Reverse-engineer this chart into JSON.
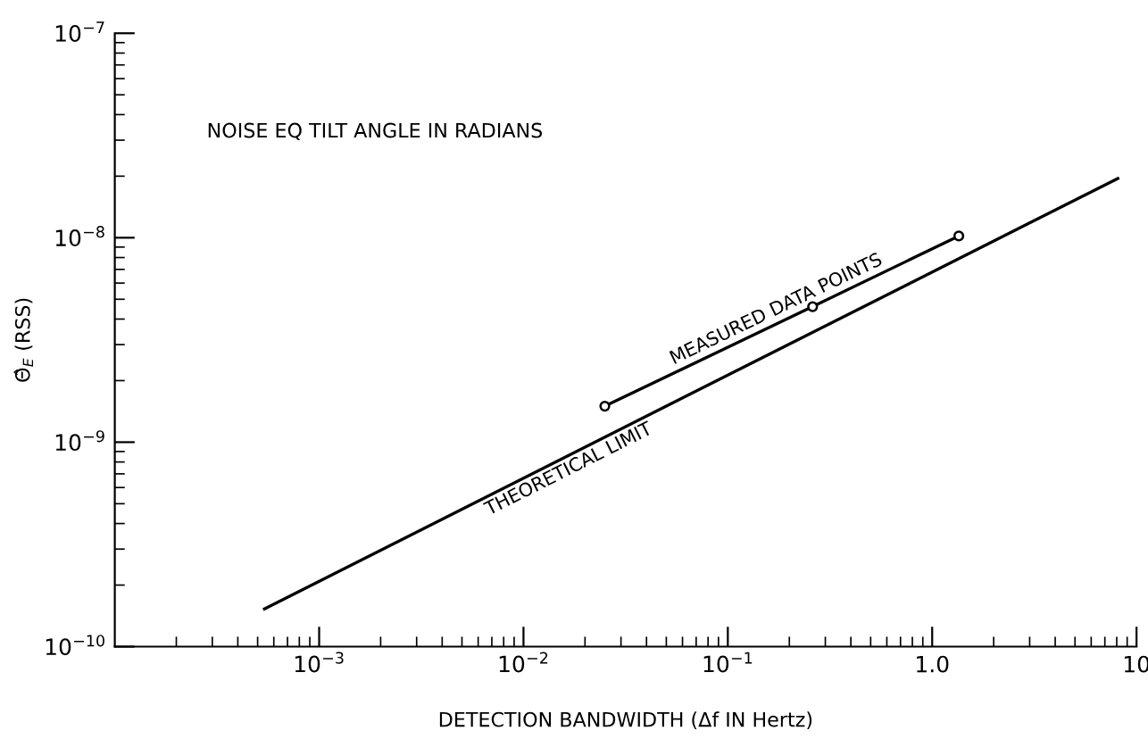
{
  "chart_data": {
    "type": "line",
    "xlabel": "DETECTION BANDWIDTH (Δf IN Hertz)",
    "ylabel": "Θ̂$_{E}$ (RSS)",
    "annotations": [
      "NOISE EQ TILT ANGLE IN RADIANS"
    ],
    "log": "xy",
    "grid": false,
    "legend": false,
    "xlim": [
      0.0001,
      10
    ],
    "ylim": [
      1e-10,
      1e-07
    ],
    "xticks": [
      {
        "value": 0.001,
        "label": "10$^{−3}$"
      },
      {
        "value": 0.01,
        "label": "10$^{−2}$"
      },
      {
        "value": 0.1,
        "label": "10$^{−1}$"
      },
      {
        "value": 1,
        "label": "1.0"
      },
      {
        "value": 10,
        "label": "10"
      }
    ],
    "yticks": [
      {
        "value": 1e-10,
        "label": "10$^{−10}$"
      },
      {
        "value": 1e-09,
        "label": "10$^{−9}$"
      },
      {
        "value": 1e-08,
        "label": "10$^{−8}$"
      },
      {
        "value": 1e-07,
        "label": "10$^{−7}$"
      }
    ],
    "series": [
      {
        "name": "THEORETICAL LIMIT",
        "color": "#000000",
        "marker": "none",
        "x": [
          0.00054,
          8.1
        ],
        "values": [
          1.53e-10,
          1.95e-08
        ]
      },
      {
        "name": "MEASURED DATA POINTS",
        "color": "#000000",
        "marker": "circle",
        "x": [
          0.025,
          0.26,
          1.35
        ],
        "values": [
          1.5e-09,
          4.6e-09,
          1.02e-08
        ]
      }
    ]
  }
}
